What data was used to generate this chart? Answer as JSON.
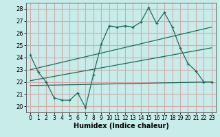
{
  "title": "",
  "xlabel": "Humidex (Indice chaleur)",
  "xlim": [
    -0.5,
    23.5
  ],
  "ylim": [
    19.5,
    28.5
  ],
  "xticks": [
    0,
    1,
    2,
    3,
    4,
    5,
    6,
    7,
    8,
    9,
    10,
    11,
    12,
    13,
    14,
    15,
    16,
    17,
    18,
    19,
    20,
    21,
    22,
    23
  ],
  "yticks": [
    20,
    21,
    22,
    23,
    24,
    25,
    26,
    27,
    28
  ],
  "bg_color": "#c8ecea",
  "grid_color": "#d8a8a8",
  "line_color": "#1a6b5a",
  "line1_x": [
    0,
    1,
    2,
    3,
    4,
    5,
    6,
    7,
    8,
    9,
    10,
    11,
    12,
    13,
    14,
    15,
    16,
    17,
    18,
    19,
    20,
    21,
    22,
    23
  ],
  "line1_y": [
    24.2,
    22.8,
    22.0,
    20.7,
    20.5,
    20.5,
    21.1,
    19.9,
    22.6,
    25.1,
    26.6,
    26.5,
    26.6,
    26.5,
    26.9,
    28.1,
    26.8,
    27.7,
    26.5,
    24.8,
    23.5,
    22.9,
    22.0,
    22.0
  ],
  "line2_x": [
    0,
    23
  ],
  "line2_y": [
    23.0,
    26.5
  ],
  "line3_x": [
    0,
    23
  ],
  "line3_y": [
    21.7,
    22.0
  ],
  "line4_x": [
    0,
    23
  ],
  "line4_y": [
    22.1,
    24.8
  ]
}
